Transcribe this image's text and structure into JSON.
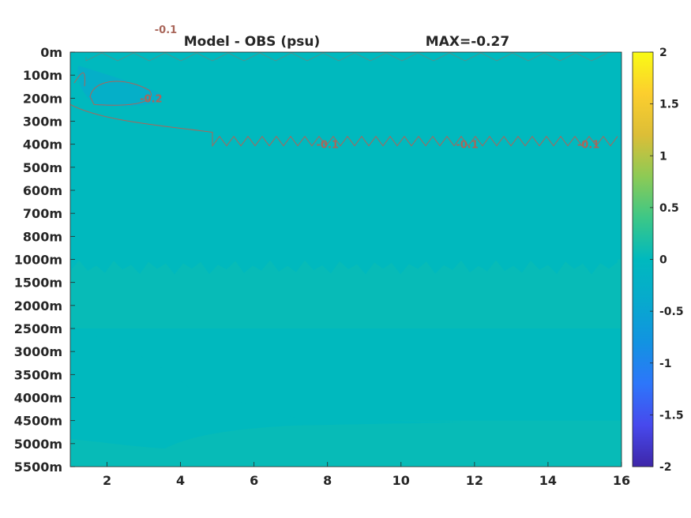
{
  "chart_data": {
    "type": "heatmap",
    "title_left": "Model - OBS (psu)",
    "title_right": "MAX=-0.27",
    "xlabel": "",
    "ylabel": "",
    "xlim": [
      1,
      16
    ],
    "x_ticks": [
      2,
      4,
      6,
      8,
      10,
      12,
      14,
      16
    ],
    "y_tick_labels": [
      "0m",
      "100m",
      "200m",
      "300m",
      "400m",
      "500m",
      "600m",
      "700m",
      "800m",
      "1000m",
      "1500m",
      "2000m",
      "2500m",
      "3000m",
      "3500m",
      "4000m",
      "4500m",
      "5000m",
      "5500m"
    ],
    "y_axis_reversed": true,
    "colorbar": {
      "colormap": "parula",
      "clim": [
        -2,
        2
      ],
      "ticks": [
        2,
        1.5,
        1,
        0.5,
        0,
        -0.5,
        -1,
        -1.5,
        -2
      ],
      "tick_labels": [
        "2",
        "1.5",
        "1",
        "0.5",
        "0",
        "-0.5",
        "-1",
        "-1.5",
        "-2"
      ],
      "location": "right"
    },
    "field_levels": [
      {
        "depth_range": [
          "0m",
          "400m"
        ],
        "approx_value": -0.2
      },
      {
        "depth_range": [
          "400m",
          "1000m"
        ],
        "approx_value": 0.0
      },
      {
        "depth_range": [
          "1000m",
          "2500m"
        ],
        "approx_value": 0.05
      },
      {
        "depth_range": [
          "2500m",
          "4500m"
        ],
        "approx_value": 0.0
      },
      {
        "depth_range": [
          "4500m",
          "5500m"
        ],
        "approx_value": 0.05
      }
    ],
    "contour_labels": [
      {
        "text": "-0.2",
        "x": 3.2,
        "depth": "200m"
      },
      {
        "text": "-0.1",
        "x": 3.6,
        "depth": "350m"
      },
      {
        "text": "-0.1",
        "x": 8.0,
        "depth": "400m"
      },
      {
        "text": "-0.1",
        "x": 11.8,
        "depth": "400m"
      },
      {
        "text": "-0.1",
        "x": 15.1,
        "depth": "400m"
      }
    ],
    "contour_color": "#a9665a",
    "grid": false
  }
}
